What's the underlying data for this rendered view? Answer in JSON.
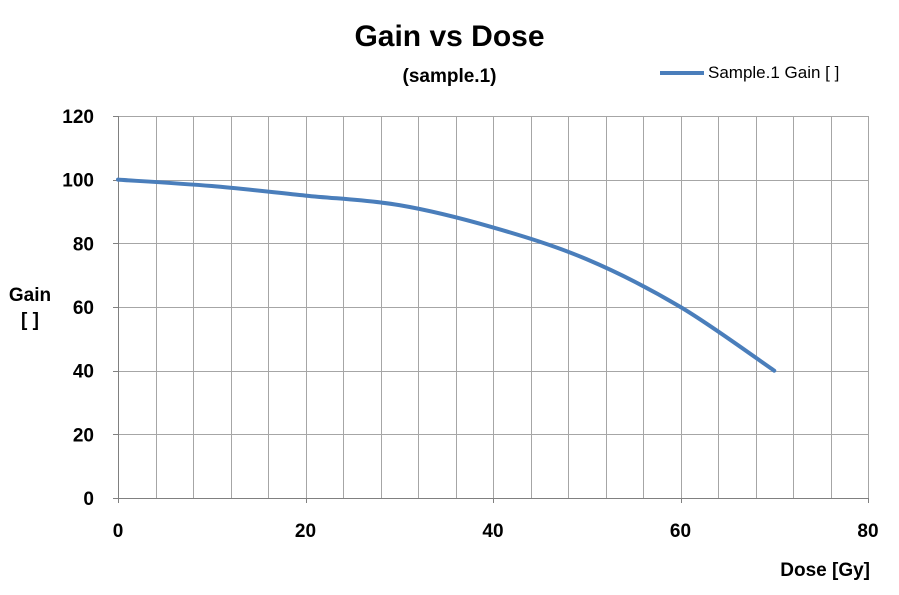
{
  "chart_data": {
    "type": "line",
    "title": "Gain vs Dose",
    "subtitle": "(sample.1)",
    "xlabel": "Dose [Gy]",
    "ylabel_line1": "Gain",
    "ylabel_line2": "[ ]",
    "xlim": [
      0,
      80
    ],
    "ylim": [
      0,
      120
    ],
    "xticks": [
      0,
      20,
      40,
      60,
      80
    ],
    "yticks": [
      0,
      20,
      40,
      60,
      80,
      100,
      120
    ],
    "xtick_labels": [
      "0",
      "20",
      "40",
      "60",
      "80"
    ],
    "ytick_labels": [
      "0",
      "20",
      "40",
      "60",
      "80",
      "100",
      "120"
    ],
    "x_minor_step": 4,
    "grid": true,
    "legend_position": "top-right",
    "series": [
      {
        "name": "Sample.1 Gain [ ]",
        "color": "#4a7ebb",
        "x": [
          0,
          10,
          20,
          30,
          40,
          50,
          60,
          70
        ],
        "y": [
          100,
          98,
          95,
          92,
          85,
          75,
          60,
          40
        ]
      }
    ]
  }
}
